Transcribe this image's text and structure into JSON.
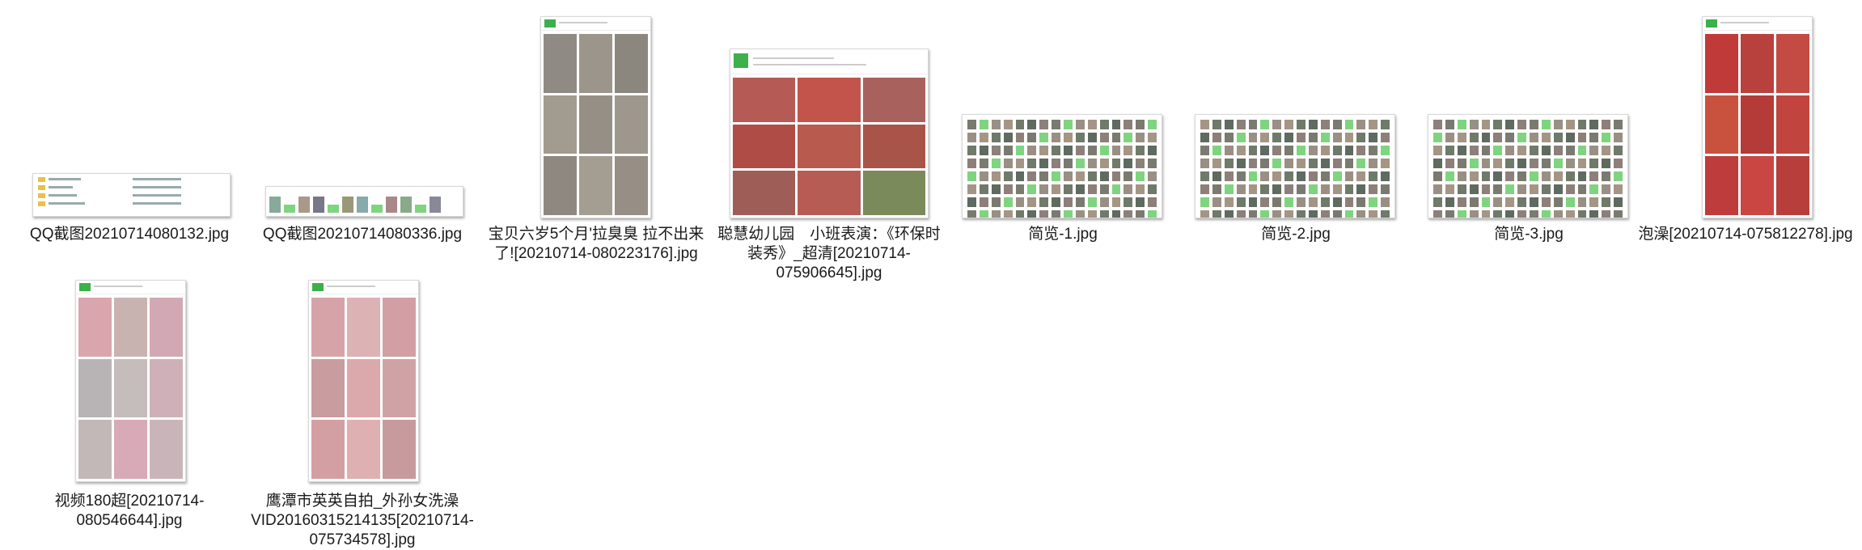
{
  "files": [
    {
      "id": "qq1",
      "name": "QQ截图20210714080132.jpg",
      "icon": "screenshot-thumbnail"
    },
    {
      "id": "qq2",
      "name": "QQ截图20210714080336.jpg",
      "icon": "screenshot-thumbnail"
    },
    {
      "id": "baby",
      "name": "宝贝六岁5个月'拉臭臭 拉不出来了![20210714-080223176].jpg",
      "icon": "photo-grid-thumbnail"
    },
    {
      "id": "kinder",
      "name": "聪慧幼儿园　小班表演：《环保时装秀》_超清[20210714-075906645].jpg",
      "icon": "photo-grid-thumbnail"
    },
    {
      "id": "b1",
      "name": "简览-1.jpg",
      "icon": "contact-sheet-thumbnail"
    },
    {
      "id": "b2",
      "name": "简览-2.jpg",
      "icon": "contact-sheet-thumbnail"
    },
    {
      "id": "b3",
      "name": "简览-3.jpg",
      "icon": "contact-sheet-thumbnail"
    },
    {
      "id": "bath",
      "name": "泡澡[20210714-075812278].jpg",
      "icon": "photo-grid-thumbnail"
    },
    {
      "id": "vid180",
      "name": "视频180超[20210714-080546644].jpg",
      "icon": "photo-grid-thumbnail"
    },
    {
      "id": "yingtan",
      "name": "鹰潭市英英自拍_外孙女洗澡VID20160315214135[20210714-075734578].jpg",
      "icon": "photo-grid-thumbnail"
    }
  ]
}
